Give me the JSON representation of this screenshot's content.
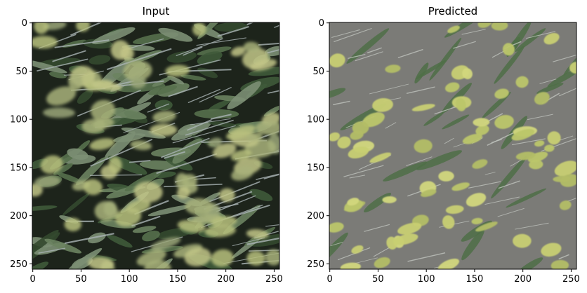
{
  "panels": [
    {
      "title": "Input",
      "x_ticks": [
        "0",
        "50",
        "100",
        "150",
        "200",
        "250"
      ],
      "y_ticks": [
        "0",
        "50",
        "100",
        "150",
        "200",
        "250"
      ],
      "image": "blurred-foliage-texture",
      "colors": {
        "dark": "#1d241b",
        "leaf": "#4e6a44",
        "blob": "#b7bf7c",
        "stem": "#aab4b5"
      }
    },
    {
      "title": "Predicted",
      "x_ticks": [
        "0",
        "50",
        "100",
        "150",
        "200",
        "250"
      ],
      "y_ticks": [
        "0",
        "50",
        "100",
        "150",
        "200",
        "250"
      ],
      "image": "gray-background-with-yellow-blobs",
      "colors": {
        "bg": "#7b7b77",
        "leaf": "#4f6e47",
        "blob": "#c8cf72",
        "stem": "#c4c8c2"
      }
    }
  ]
}
